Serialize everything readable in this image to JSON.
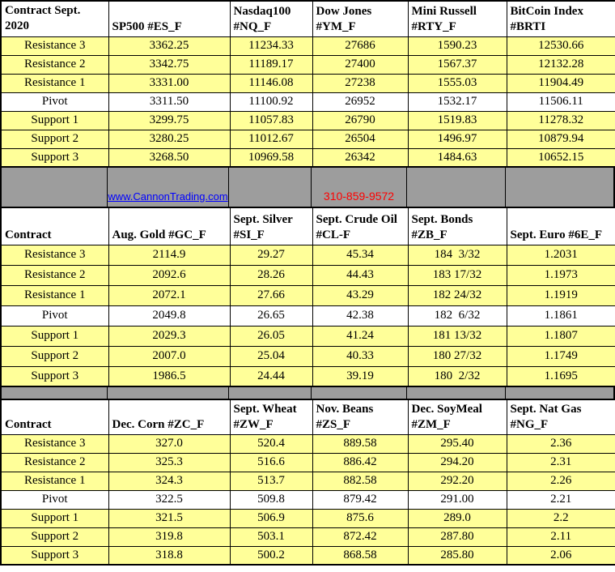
{
  "colors": {
    "row_yellow": "#FFFF99",
    "pivot_white": "#FFFFFF",
    "separator_gray": "#9D9D9D",
    "link_blue": "#0000FF",
    "phone_red": "#FF0000",
    "border_black": "#000000"
  },
  "separator": {
    "link_text": "www.CannonTrading.com",
    "phone": "310-859-9572"
  },
  "chart_data": [
    {
      "type": "table",
      "title": "Index futures pivot points - Sept. 2020",
      "header": {
        "contract_line1": "Contract Sept.",
        "contract_line2": "2020",
        "instruments": [
          {
            "line1": "SP500 #ES_F",
            "line2": ""
          },
          {
            "line1": "Nasdaq100",
            "line2": "#NQ_F"
          },
          {
            "line1": "Dow Jones",
            "line2": "#YM_F"
          },
          {
            "line1": "Mini Russell",
            "line2": "#RTY_F"
          },
          {
            "line1": "BitCoin Index",
            "line2": "#BRTI"
          }
        ]
      },
      "rows": [
        {
          "label": "Resistance 3",
          "values": [
            "3362.25",
            "11234.33",
            "27686",
            "1590.23",
            "12530.66"
          ]
        },
        {
          "label": "Resistance 2",
          "values": [
            "3342.75",
            "11189.17",
            "27400",
            "1567.37",
            "12132.28"
          ]
        },
        {
          "label": "Resistance 1",
          "values": [
            "3331.00",
            "11146.08",
            "27238",
            "1555.03",
            "11904.49"
          ]
        },
        {
          "label": "Pivot",
          "values": [
            "3311.50",
            "11100.92",
            "26952",
            "1532.17",
            "11506.11"
          ]
        },
        {
          "label": "Support 1",
          "values": [
            "3299.75",
            "11057.83",
            "26790",
            "1519.83",
            "11278.32"
          ]
        },
        {
          "label": "Support 2",
          "values": [
            "3280.25",
            "11012.67",
            "26504",
            "1496.97",
            "10879.94"
          ]
        },
        {
          "label": "Support 3",
          "values": [
            "3268.50",
            "10969.58",
            "26342",
            "1484.63",
            "10652.15"
          ]
        }
      ]
    },
    {
      "type": "table",
      "title": "Metals, energy, bonds and euro futures pivot points",
      "header": {
        "contract_line1": "Contract",
        "contract_line2": "",
        "instruments": [
          {
            "line1": "Aug. Gold #GC_F",
            "line2": ""
          },
          {
            "line1": "Sept. Silver",
            "line2": "#SI_F"
          },
          {
            "line1": "Sept. Crude Oil",
            "line2": "#CL-F"
          },
          {
            "line1": "Sept. Bonds",
            "line2": "#ZB_F"
          },
          {
            "line1": "Sept.  Euro #6E_F",
            "line2": ""
          }
        ]
      },
      "rows": [
        {
          "label": "Resistance 3",
          "values": [
            "2114.9",
            "29.27",
            "45.34",
            "184  3/32",
            "1.2031"
          ]
        },
        {
          "label": "Resistance 2",
          "values": [
            "2092.6",
            "28.26",
            "44.43",
            "183 17/32",
            "1.1973"
          ]
        },
        {
          "label": "Resistance 1",
          "values": [
            "2072.1",
            "27.66",
            "43.29",
            "182 24/32",
            "1.1919"
          ]
        },
        {
          "label": "Pivot",
          "values": [
            "2049.8",
            "26.65",
            "42.38",
            "182  6/32",
            "1.1861"
          ]
        },
        {
          "label": "Support 1",
          "values": [
            "2029.3",
            "26.05",
            "41.24",
            "181 13/32",
            "1.1807"
          ]
        },
        {
          "label": "Support 2",
          "values": [
            "2007.0",
            "25.04",
            "40.33",
            "180 27/32",
            "1.1749"
          ]
        },
        {
          "label": "Support 3",
          "values": [
            "1986.5",
            "24.44",
            "39.19",
            "180  2/32",
            "1.1695"
          ]
        }
      ]
    },
    {
      "type": "table",
      "title": "Grain and natural gas futures pivot points",
      "header": {
        "contract_line1": "Contract",
        "contract_line2": "",
        "instruments": [
          {
            "line1": "Dec. Corn #ZC_F",
            "line2": ""
          },
          {
            "line1": "Sept. Wheat",
            "line2": "#ZW_F"
          },
          {
            "line1": "Nov.  Beans",
            "line2": "#ZS_F"
          },
          {
            "line1": "Dec. SoyMeal",
            "line2": "#ZM_F"
          },
          {
            "line1": "Sept. Nat Gas",
            "line2": "#NG_F"
          }
        ]
      },
      "rows": [
        {
          "label": "Resistance 3",
          "values": [
            "327.0",
            "520.4",
            "889.58",
            "295.40",
            "2.36"
          ]
        },
        {
          "label": "Resistance 2",
          "values": [
            "325.3",
            "516.6",
            "886.42",
            "294.20",
            "2.31"
          ]
        },
        {
          "label": "Resistance 1",
          "values": [
            "324.3",
            "513.7",
            "882.58",
            "292.20",
            "2.26"
          ]
        },
        {
          "label": "Pivot",
          "values": [
            "322.5",
            "509.8",
            "879.42",
            "291.00",
            "2.21"
          ]
        },
        {
          "label": "Support 1",
          "values": [
            "321.5",
            "506.9",
            "875.6",
            "289.0",
            "2.2"
          ]
        },
        {
          "label": "Support 2",
          "values": [
            "319.8",
            "503.1",
            "872.42",
            "287.80",
            "2.11"
          ]
        },
        {
          "label": "Support 3",
          "values": [
            "318.8",
            "500.2",
            "868.58",
            "285.80",
            "2.06"
          ]
        }
      ]
    }
  ]
}
